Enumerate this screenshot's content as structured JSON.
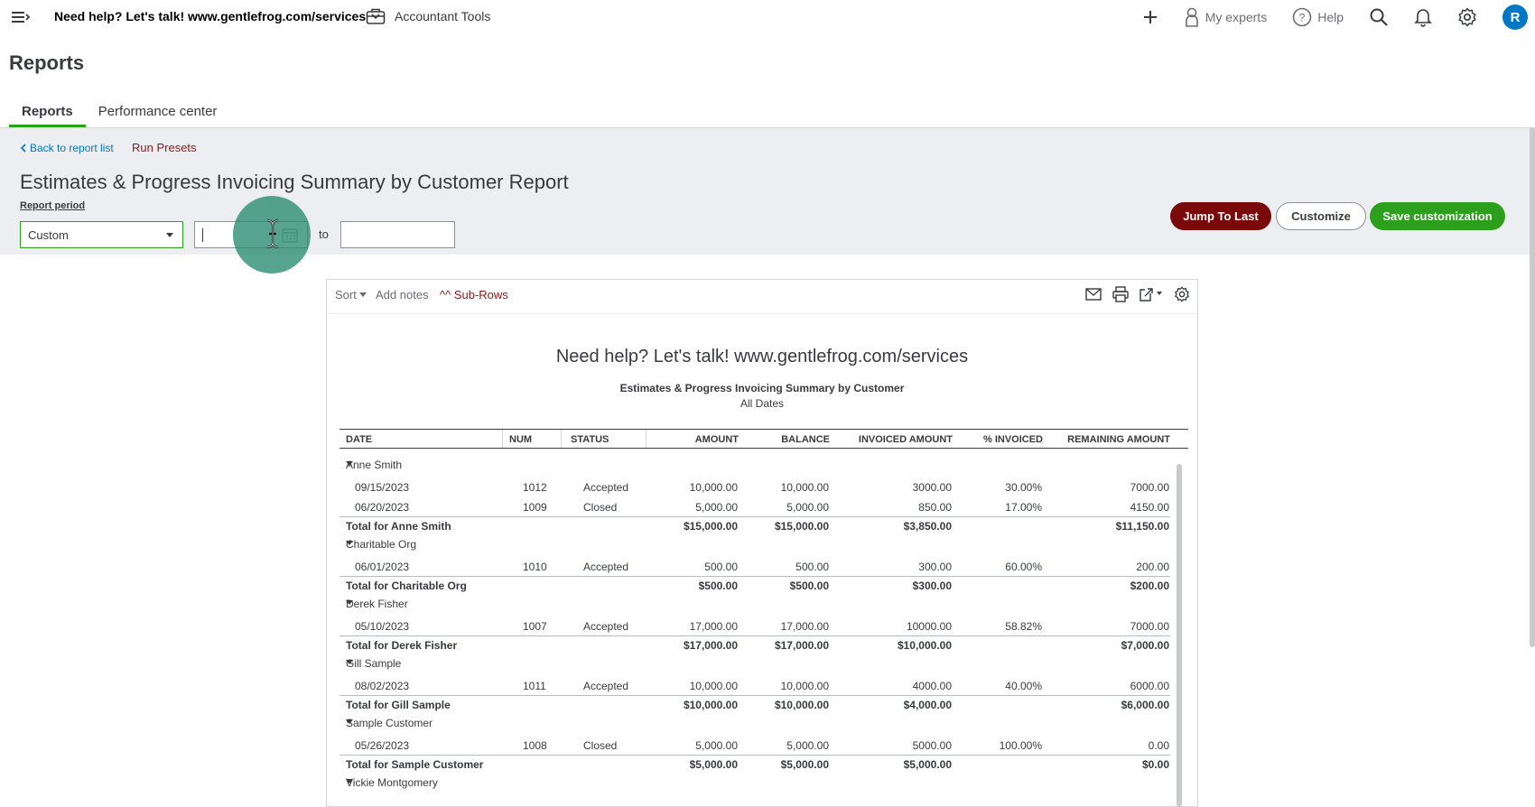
{
  "topbar": {
    "company_name": "Need help? Let's talk! www.gentlefrog.com/services",
    "accountant_tools": "Accountant Tools",
    "my_experts": "My experts",
    "help": "Help",
    "avatar_letter": "R"
  },
  "page": {
    "title": "Reports",
    "tabs": [
      {
        "label": "Reports"
      },
      {
        "label": "Performance center"
      }
    ]
  },
  "header": {
    "back_link": "Back to report list",
    "run_presets": "Run Presets",
    "report_title": "Estimates & Progress Invoicing Summary by Customer Report",
    "period_label": "Report period",
    "period_value": "Custom",
    "from_value": "",
    "to_label": "to",
    "to_value": "",
    "buttons": {
      "jump": "Jump To Last",
      "customize": "Customize",
      "save": "Save customization"
    }
  },
  "report_toolbar": {
    "sort": "Sort",
    "add_notes": "Add notes",
    "sub_rows": "^^ Sub-Rows"
  },
  "report": {
    "company": "Need help? Let's talk! www.gentlefrog.com/services",
    "name": "Estimates & Progress Invoicing Summary by Customer",
    "dates": "All Dates",
    "columns": [
      "DATE",
      "NUM",
      "STATUS",
      "AMOUNT",
      "BALANCE",
      "INVOICED AMOUNT",
      "% INVOICED",
      "REMAINING AMOUNT"
    ],
    "rows": [
      {
        "type": "group",
        "label": "Anne Smith"
      },
      {
        "type": "data",
        "cells": [
          "09/15/2023",
          "1012",
          "Accepted",
          "10,000.00",
          "10,000.00",
          "3000.00",
          "30.00%",
          "7000.00"
        ]
      },
      {
        "type": "data",
        "cells": [
          "06/20/2023",
          "1009",
          "Closed",
          "5,000.00",
          "5,000.00",
          "850.00",
          "17.00%",
          "4150.00"
        ]
      },
      {
        "type": "total",
        "cells": [
          "Total for Anne Smith",
          "",
          "",
          "$15,000.00",
          "$15,000.00",
          "$3,850.00",
          "",
          "$11,150.00"
        ]
      },
      {
        "type": "group",
        "label": "Charitable Org"
      },
      {
        "type": "data",
        "cells": [
          "06/01/2023",
          "1010",
          "Accepted",
          "500.00",
          "500.00",
          "300.00",
          "60.00%",
          "200.00"
        ]
      },
      {
        "type": "total",
        "cells": [
          "Total for Charitable Org",
          "",
          "",
          "$500.00",
          "$500.00",
          "$300.00",
          "",
          "$200.00"
        ]
      },
      {
        "type": "group",
        "label": "Derek Fisher"
      },
      {
        "type": "data",
        "cells": [
          "05/10/2023",
          "1007",
          "Accepted",
          "17,000.00",
          "17,000.00",
          "10000.00",
          "58.82%",
          "7000.00"
        ]
      },
      {
        "type": "total",
        "cells": [
          "Total for Derek Fisher",
          "",
          "",
          "$17,000.00",
          "$17,000.00",
          "$10,000.00",
          "",
          "$7,000.00"
        ]
      },
      {
        "type": "group",
        "label": "Gill Sample"
      },
      {
        "type": "data",
        "cells": [
          "08/02/2023",
          "1011",
          "Accepted",
          "10,000.00",
          "10,000.00",
          "4000.00",
          "40.00%",
          "6000.00"
        ]
      },
      {
        "type": "total",
        "cells": [
          "Total for Gill Sample",
          "",
          "",
          "$10,000.00",
          "$10,000.00",
          "$4,000.00",
          "",
          "$6,000.00"
        ]
      },
      {
        "type": "group",
        "label": "Sample Customer"
      },
      {
        "type": "data",
        "cells": [
          "05/26/2023",
          "1008",
          "Closed",
          "5,000.00",
          "5,000.00",
          "5000.00",
          "100.00%",
          "0.00"
        ]
      },
      {
        "type": "total",
        "cells": [
          "Total for Sample Customer",
          "",
          "",
          "$5,000.00",
          "$5,000.00",
          "$5,000.00",
          "",
          "$0.00"
        ]
      },
      {
        "type": "group",
        "label": "Vickie Montgomery"
      }
    ]
  }
}
